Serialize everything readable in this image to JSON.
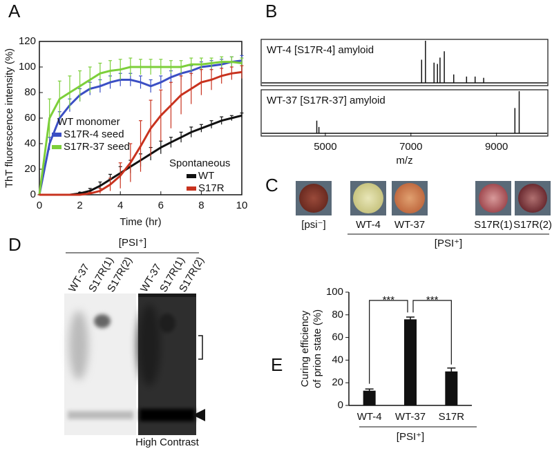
{
  "panel_labels": [
    "A",
    "B",
    "C",
    "D",
    "E"
  ],
  "chart_data": [
    {
      "type": "line",
      "xlabel": "Time (hr)",
      "ylabel": "ThT fluorescence intensity (%)",
      "xlim": [
        0,
        10
      ],
      "xticks": [
        0,
        2,
        4,
        6,
        8,
        10
      ],
      "ylim": [
        0,
        120
      ],
      "yticks": [
        0,
        20,
        40,
        60,
        80,
        100,
        120
      ],
      "legend_titles": [
        "WT monomer",
        "Spontaneous"
      ],
      "x": [
        0,
        0.5,
        1,
        1.5,
        2,
        2.5,
        3,
        3.5,
        4,
        4.5,
        5,
        5.5,
        6,
        6.5,
        7,
        7.5,
        8,
        8.5,
        9,
        9.5,
        10
      ],
      "series": [
        {
          "name": "S17R-4 seed",
          "color": "#3b4fc4",
          "values": [
            0,
            40,
            60,
            70,
            78,
            83,
            85,
            88,
            90,
            90,
            88,
            85,
            88,
            92,
            95,
            97,
            100,
            101,
            102,
            104,
            105
          ],
          "errors": [
            0,
            5,
            5,
            5,
            5,
            5,
            5,
            5,
            5,
            5,
            5,
            5,
            5,
            5,
            5,
            4,
            4,
            4,
            4,
            4,
            4
          ]
        },
        {
          "name": "S17R-37 seed",
          "color": "#7ccf3a",
          "values": [
            0,
            60,
            75,
            80,
            85,
            90,
            95,
            97,
            98,
            100,
            100,
            100,
            100,
            100,
            100,
            102,
            102,
            103,
            104,
            104,
            103
          ],
          "errors": [
            0,
            15,
            14,
            13,
            12,
            10,
            8,
            8,
            8,
            7,
            6,
            6,
            6,
            5,
            5,
            5,
            5,
            4,
            4,
            4,
            4
          ]
        },
        {
          "name": "WT",
          "color": "#111111",
          "values": [
            0,
            0,
            0,
            0,
            1,
            3,
            7,
            12,
            17,
            22,
            27,
            32,
            37,
            41,
            45,
            49,
            52,
            55,
            58,
            60,
            62
          ],
          "errors": [
            0,
            0,
            0,
            0,
            1,
            2,
            3,
            4,
            5,
            5,
            5,
            5,
            5,
            4,
            4,
            4,
            3,
            3,
            3,
            2,
            2
          ]
        },
        {
          "name": "S17R",
          "color": "#c8321e",
          "values": [
            0,
            0,
            0,
            0,
            0,
            1,
            3,
            8,
            15,
            25,
            38,
            52,
            62,
            70,
            78,
            83,
            88,
            90,
            93,
            95,
            96
          ],
          "errors": [
            0,
            0,
            0,
            0,
            0,
            1,
            2,
            5,
            10,
            15,
            20,
            22,
            20,
            18,
            15,
            12,
            10,
            8,
            6,
            5,
            5
          ]
        }
      ]
    },
    {
      "type": "spectrum",
      "xlabel": "m/z",
      "xlim": [
        3500,
        10200
      ],
      "xticks": [
        5000,
        7000,
        9000
      ],
      "series": [
        {
          "name": "WT-4 [S17R-4] amyloid",
          "x": [
            7250,
            7340,
            7540,
            7620,
            7680,
            7780,
            8000,
            8300,
            8500,
            8700
          ],
          "values": [
            55,
            100,
            48,
            45,
            60,
            75,
            20,
            15,
            15,
            12
          ]
        },
        {
          "name": "WT-37 [S17R-37] amyloid",
          "x": [
            4800,
            4850,
            9430,
            9530
          ],
          "values": [
            30,
            15,
            60,
            100
          ]
        }
      ]
    },
    {
      "type": "bar",
      "ylabel": [
        "Curing efficiency",
        "of prion state (%)"
      ],
      "categories": [
        "WT-4",
        "WT-37",
        "S17R"
      ],
      "values": [
        13,
        76,
        30
      ],
      "errors": [
        1.5,
        2,
        3
      ],
      "color": "#111111",
      "ylim": [
        0,
        100
      ],
      "yticks": [
        0,
        20,
        40,
        60,
        80,
        100
      ],
      "annotations": [
        "***",
        "***"
      ],
      "group_label": "[PSI⁺]"
    }
  ],
  "colonies": {
    "labels": [
      "[psi⁻]",
      "WT-4",
      "WT-37",
      "S17R(1)",
      "S17R(2)"
    ],
    "group_label": "[PSI⁺]"
  },
  "gel": {
    "group_label": "[PSI⁺]",
    "lanes": [
      "WT-37",
      "S17R(1)",
      "S17R(2)"
    ],
    "contrast_label": "High Contrast"
  }
}
